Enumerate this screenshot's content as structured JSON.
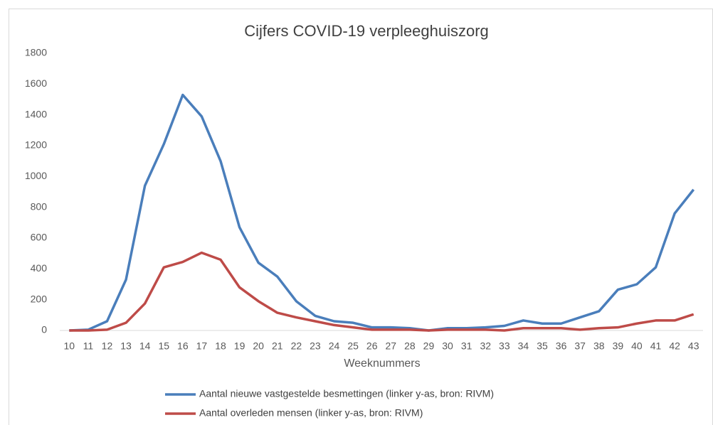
{
  "chart_data": {
    "type": "line",
    "title": "Cijfers COVID-19 verpleeghuiszorg",
    "x_label": "Weeknummers",
    "categories": [
      "10",
      "11",
      "12",
      "13",
      "14",
      "15",
      "16",
      "17",
      "18",
      "19",
      "20",
      "21",
      "22",
      "23",
      "24",
      "25",
      "26",
      "27",
      "28",
      "29",
      "30",
      "31",
      "32",
      "33",
      "34",
      "35",
      "36",
      "37",
      "38",
      "39",
      "40",
      "41",
      "42",
      "43"
    ],
    "series": [
      {
        "name": "Aantal nieuwe vastgestelde besmettingen  (linker y-as, bron: RIVM)",
        "color": "#4a7ebb",
        "values": [
          0,
          5,
          60,
          330,
          940,
          1210,
          1530,
          1390,
          1100,
          670,
          440,
          350,
          190,
          95,
          60,
          50,
          20,
          20,
          15,
          0,
          15,
          15,
          20,
          30,
          65,
          45,
          45,
          85,
          125,
          265,
          300,
          410,
          760,
          915
        ]
      },
      {
        "name": "Aantal overleden mensen  (linker y-as, bron: RIVM)",
        "color": "#be4b48",
        "values": [
          0,
          0,
          5,
          50,
          175,
          410,
          445,
          505,
          460,
          280,
          190,
          115,
          85,
          60,
          35,
          20,
          5,
          5,
          5,
          0,
          5,
          5,
          5,
          0,
          15,
          15,
          15,
          5,
          15,
          20,
          45,
          65,
          65,
          105
        ]
      }
    ],
    "ylim": [
      0,
      1800
    ],
    "yticks": [
      0,
      200,
      400,
      600,
      800,
      1000,
      1200,
      1400,
      1600,
      1800
    ],
    "grid": false,
    "legend": "bottom"
  }
}
